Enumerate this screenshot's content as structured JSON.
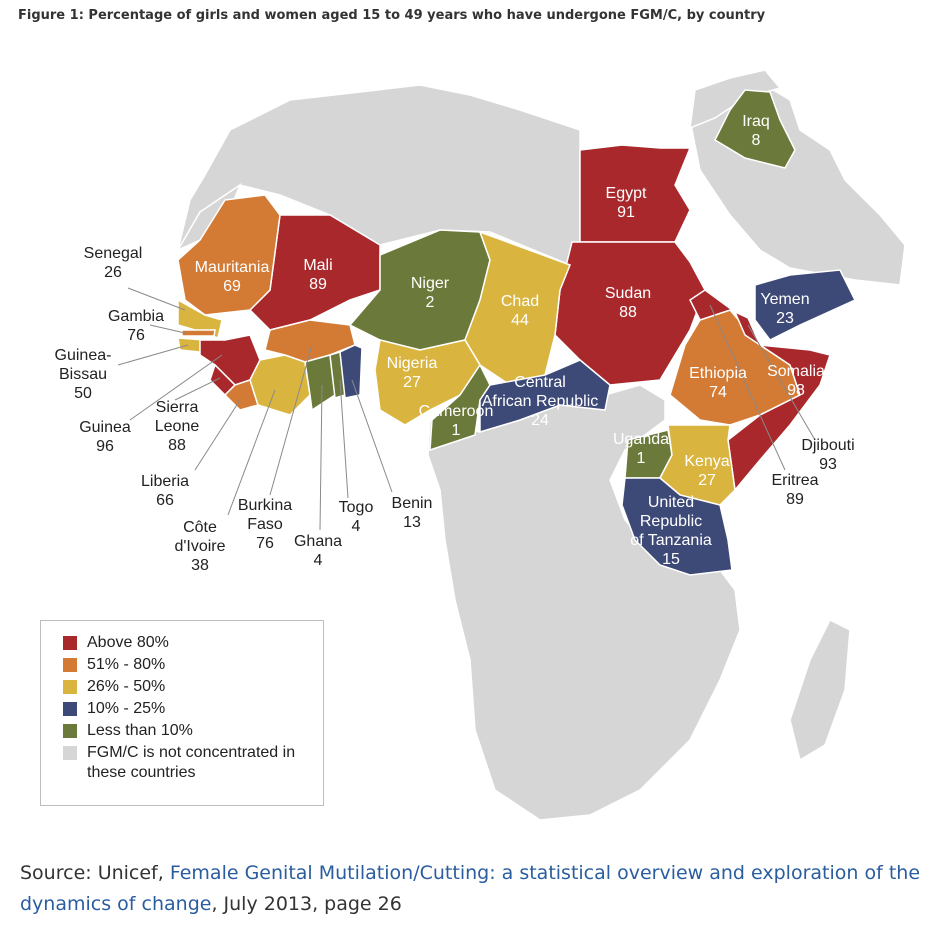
{
  "title": "Figure 1: Percentage of girls and women aged 15 to 49 years who have undergone FGM/C, by country",
  "colors": {
    "above80": "#a8282c",
    "r51_80": "#d37a34",
    "r26_50": "#d9b43e",
    "r10_25": "#3d4a78",
    "below10": "#6b7a3a",
    "none": "#d6d6d6",
    "border": "#ffffff"
  },
  "map_data": {
    "countries": [
      {
        "id": "egypt",
        "name": "Egypt",
        "value": "91",
        "category": "above80"
      },
      {
        "id": "sudan",
        "name": "Sudan",
        "value": "88",
        "category": "above80"
      },
      {
        "id": "mali",
        "name": "Mali",
        "value": "89",
        "category": "above80"
      },
      {
        "id": "somalia",
        "name": "Somalia",
        "value": "98",
        "category": "above80"
      },
      {
        "id": "guinea",
        "name": "Guinea",
        "value": "96",
        "category": "above80"
      },
      {
        "id": "sierra_leone",
        "name": "Sierra Leone",
        "value": "88",
        "category": "above80"
      },
      {
        "id": "eritrea",
        "name": "Eritrea",
        "value": "89",
        "category": "above80"
      },
      {
        "id": "djibouti",
        "name": "Djibouti",
        "value": "93",
        "category": "above80"
      },
      {
        "id": "mauritania",
        "name": "Mauritania",
        "value": "69",
        "category": "r51_80"
      },
      {
        "id": "ethiopia",
        "name": "Ethiopia",
        "value": "74",
        "category": "r51_80"
      },
      {
        "id": "burkina_faso",
        "name": "Burkina Faso",
        "value": "76",
        "category": "r51_80"
      },
      {
        "id": "gambia",
        "name": "Gambia",
        "value": "76",
        "category": "r51_80"
      },
      {
        "id": "liberia",
        "name": "Liberia",
        "value": "66",
        "category": "r51_80"
      },
      {
        "id": "chad",
        "name": "Chad",
        "value": "44",
        "category": "r26_50"
      },
      {
        "id": "nigeria",
        "name": "Nigeria",
        "value": "27",
        "category": "r26_50"
      },
      {
        "id": "kenya",
        "name": "Kenya",
        "value": "27",
        "category": "r26_50"
      },
      {
        "id": "senegal",
        "name": "Senegal",
        "value": "26",
        "category": "r26_50"
      },
      {
        "id": "guinea_bissau",
        "name": "Guinea-Bissau",
        "value": "50",
        "category": "r26_50"
      },
      {
        "id": "cote_divoire",
        "name": "Côte d'Ivoire",
        "value": "38",
        "category": "r26_50"
      },
      {
        "id": "car",
        "name": "Central African Republic",
        "value": "24",
        "category": "r10_25"
      },
      {
        "id": "tanzania",
        "name": "United Republic of Tanzania",
        "value": "15",
        "category": "r10_25"
      },
      {
        "id": "yemen",
        "name": "Yemen",
        "value": "23",
        "category": "r10_25"
      },
      {
        "id": "benin",
        "name": "Benin",
        "value": "13",
        "category": "r10_25"
      },
      {
        "id": "niger",
        "name": "Niger",
        "value": "2",
        "category": "below10"
      },
      {
        "id": "cameroon",
        "name": "Cameroon",
        "value": "1",
        "category": "below10"
      },
      {
        "id": "uganda",
        "name": "Uganda",
        "value": "1",
        "category": "below10"
      },
      {
        "id": "iraq",
        "name": "Iraq",
        "value": "8",
        "category": "below10"
      },
      {
        "id": "ghana",
        "name": "Ghana",
        "value": "4",
        "category": "below10"
      },
      {
        "id": "togo",
        "name": "Togo",
        "value": "4",
        "category": "below10"
      }
    ]
  },
  "labels": {
    "egypt": [
      "Egypt",
      "91"
    ],
    "sudan": [
      "Sudan",
      "88"
    ],
    "mali": [
      "Mali",
      "89"
    ],
    "mauritania": [
      "Mauritania",
      "69"
    ],
    "niger": [
      "Niger",
      "2"
    ],
    "chad": [
      "Chad",
      "44"
    ],
    "nigeria": [
      "Nigeria",
      "27"
    ],
    "cameroon": [
      "Cameroon",
      "1"
    ],
    "car": [
      "Central",
      "African Republic",
      "24"
    ],
    "ethiopia": [
      "Ethiopia",
      "74"
    ],
    "somalia": [
      "Somalia",
      "98"
    ],
    "yemen": [
      "Yemen",
      "23"
    ],
    "iraq": [
      "Iraq",
      "8"
    ],
    "uganda": [
      "Uganda",
      "1"
    ],
    "kenya": [
      "Kenya",
      "27"
    ],
    "tanzania": [
      "United",
      "Republic",
      "of Tanzania",
      "15"
    ],
    "senegal": [
      "Senegal",
      "26"
    ],
    "gambia": [
      "Gambia",
      "76"
    ],
    "guinea_bissau": [
      "Guinea-",
      "Bissau",
      "50"
    ],
    "guinea": [
      "Guinea",
      "96"
    ],
    "sierra_leone": [
      "Sierra",
      "Leone",
      "88"
    ],
    "liberia": [
      "Liberia",
      "66"
    ],
    "cote_divoire": [
      "Côte",
      "d'Ivoire",
      "38"
    ],
    "burkina_faso": [
      "Burkina",
      "Faso",
      "76"
    ],
    "ghana": [
      "Ghana",
      "4"
    ],
    "togo": [
      "Togo",
      "4"
    ],
    "benin": [
      "Benin",
      "13"
    ],
    "djibouti": [
      "Djibouti",
      "93"
    ],
    "eritrea": [
      "Eritrea",
      "89"
    ]
  },
  "legend": [
    {
      "key": "above80",
      "label": "Above 80%"
    },
    {
      "key": "r51_80",
      "label": "51% - 80%"
    },
    {
      "key": "r26_50",
      "label": "26% - 50%"
    },
    {
      "key": "r10_25",
      "label": "10% - 25%"
    },
    {
      "key": "below10",
      "label": "Less than 10%"
    },
    {
      "key": "none",
      "label": "FGM/C is not concentrated in these countries"
    }
  ],
  "source": {
    "prefix": "Source: Unicef, ",
    "link_text": "Female Genital Mutilation/Cutting: a statistical overview and exploration of the",
    "link_text_2": "dynamics of change",
    "suffix": ", July 2013, page 26"
  }
}
